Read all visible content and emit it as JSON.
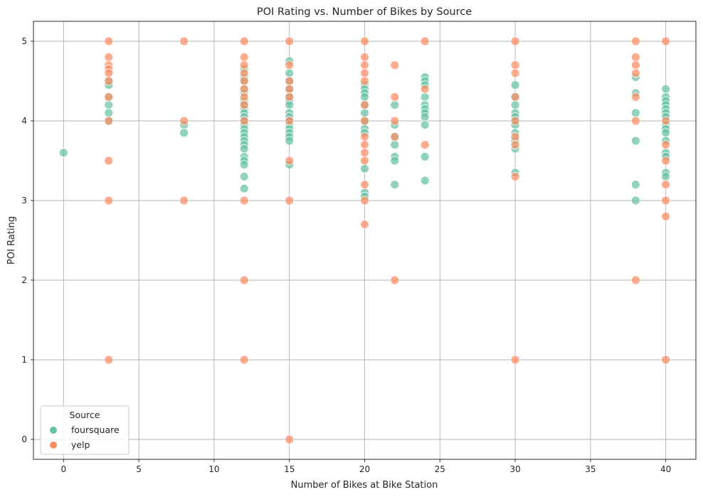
{
  "chart_data": {
    "type": "scatter",
    "title": "POI Rating vs. Number of Bikes by Source",
    "xlabel": "Number of Bikes at Bike Station",
    "ylabel": "POI Rating",
    "xlim": [
      -2,
      42
    ],
    "ylim": [
      -0.25,
      5.25
    ],
    "xticks": [
      0,
      5,
      10,
      15,
      20,
      25,
      30,
      35,
      40
    ],
    "yticks": [
      0,
      1,
      2,
      3,
      4,
      5
    ],
    "grid": true,
    "legend": {
      "title": "Source",
      "placement": "lower-left",
      "entries": [
        "foursquare",
        "yelp"
      ]
    },
    "colors": {
      "foursquare": "#66c2a5",
      "yelp": "#fc8d62"
    },
    "series": [
      {
        "name": "foursquare",
        "points": [
          [
            0,
            3.6
          ],
          [
            3,
            4.5
          ],
          [
            3,
            4.45
          ],
          [
            3,
            4.3
          ],
          [
            3,
            4.2
          ],
          [
            3,
            4.1
          ],
          [
            3,
            4.0
          ],
          [
            8,
            3.95
          ],
          [
            8,
            3.85
          ],
          [
            12,
            4.65
          ],
          [
            12,
            4.55
          ],
          [
            12,
            4.5
          ],
          [
            12,
            4.4
          ],
          [
            12,
            4.35
          ],
          [
            12,
            4.25
          ],
          [
            12,
            4.2
          ],
          [
            12,
            4.15
          ],
          [
            12,
            4.1
          ],
          [
            12,
            4.05
          ],
          [
            12,
            4.0
          ],
          [
            12,
            3.95
          ],
          [
            12,
            3.9
          ],
          [
            12,
            3.85
          ],
          [
            12,
            3.8
          ],
          [
            12,
            3.75
          ],
          [
            12,
            3.7
          ],
          [
            12,
            3.65
          ],
          [
            12,
            3.55
          ],
          [
            12,
            3.5
          ],
          [
            12,
            3.45
          ],
          [
            12,
            3.3
          ],
          [
            12,
            3.15
          ],
          [
            15,
            4.75
          ],
          [
            15,
            4.6
          ],
          [
            15,
            4.5
          ],
          [
            15,
            4.4
          ],
          [
            15,
            4.3
          ],
          [
            15,
            4.25
          ],
          [
            15,
            4.2
          ],
          [
            15,
            4.1
          ],
          [
            15,
            4.05
          ],
          [
            15,
            4.0
          ],
          [
            15,
            3.95
          ],
          [
            15,
            3.9
          ],
          [
            15,
            3.85
          ],
          [
            15,
            3.8
          ],
          [
            15,
            3.75
          ],
          [
            15,
            3.45
          ],
          [
            20,
            4.45
          ],
          [
            20,
            4.4
          ],
          [
            20,
            4.35
          ],
          [
            20,
            4.3
          ],
          [
            20,
            4.2
          ],
          [
            20,
            4.1
          ],
          [
            20,
            4.0
          ],
          [
            20,
            3.9
          ],
          [
            20,
            3.85
          ],
          [
            20,
            3.4
          ],
          [
            20,
            3.1
          ],
          [
            20,
            3.05
          ],
          [
            22,
            4.2
          ],
          [
            22,
            3.95
          ],
          [
            22,
            3.8
          ],
          [
            22,
            3.7
          ],
          [
            22,
            3.55
          ],
          [
            22,
            3.5
          ],
          [
            22,
            3.2
          ],
          [
            24,
            4.55
          ],
          [
            24,
            4.5
          ],
          [
            24,
            4.45
          ],
          [
            24,
            4.3
          ],
          [
            24,
            4.2
          ],
          [
            24,
            4.15
          ],
          [
            24,
            4.1
          ],
          [
            24,
            4.05
          ],
          [
            24,
            3.95
          ],
          [
            24,
            3.55
          ],
          [
            24,
            3.25
          ],
          [
            30,
            4.45
          ],
          [
            30,
            4.3
          ],
          [
            30,
            4.2
          ],
          [
            30,
            4.1
          ],
          [
            30,
            4.05
          ],
          [
            30,
            4.0
          ],
          [
            30,
            3.95
          ],
          [
            30,
            3.85
          ],
          [
            30,
            3.75
          ],
          [
            30,
            3.65
          ],
          [
            30,
            3.35
          ],
          [
            38,
            4.55
          ],
          [
            38,
            4.35
          ],
          [
            38,
            4.1
          ],
          [
            38,
            3.75
          ],
          [
            38,
            3.2
          ],
          [
            38,
            3.0
          ],
          [
            40,
            4.4
          ],
          [
            40,
            4.3
          ],
          [
            40,
            4.25
          ],
          [
            40,
            4.2
          ],
          [
            40,
            4.15
          ],
          [
            40,
            4.1
          ],
          [
            40,
            4.05
          ],
          [
            40,
            3.95
          ],
          [
            40,
            3.9
          ],
          [
            40,
            3.85
          ],
          [
            40,
            3.75
          ],
          [
            40,
            3.6
          ],
          [
            40,
            3.55
          ],
          [
            40,
            3.35
          ],
          [
            40,
            3.3
          ]
        ]
      },
      {
        "name": "yelp",
        "points": [
          [
            3,
            5.0
          ],
          [
            3,
            4.8
          ],
          [
            3,
            4.7
          ],
          [
            3,
            4.65
          ],
          [
            3,
            4.6
          ],
          [
            3,
            4.5
          ],
          [
            3,
            4.3
          ],
          [
            3,
            4.0
          ],
          [
            3,
            3.5
          ],
          [
            3,
            3.0
          ],
          [
            3,
            1.0
          ],
          [
            8,
            5.0
          ],
          [
            8,
            4.0
          ],
          [
            8,
            3.0
          ],
          [
            12,
            5.0
          ],
          [
            12,
            4.8
          ],
          [
            12,
            4.7
          ],
          [
            12,
            4.6
          ],
          [
            12,
            4.5
          ],
          [
            12,
            4.4
          ],
          [
            12,
            4.3
          ],
          [
            12,
            4.2
          ],
          [
            12,
            4.0
          ],
          [
            12,
            3.0
          ],
          [
            12,
            2.0
          ],
          [
            12,
            1.0
          ],
          [
            15,
            5.0
          ],
          [
            15,
            4.7
          ],
          [
            15,
            4.5
          ],
          [
            15,
            4.4
          ],
          [
            15,
            4.3
          ],
          [
            15,
            4.0
          ],
          [
            15,
            3.5
          ],
          [
            15,
            3.0
          ],
          [
            15,
            0.0
          ],
          [
            20,
            5.0
          ],
          [
            20,
            4.8
          ],
          [
            20,
            4.7
          ],
          [
            20,
            4.6
          ],
          [
            20,
            4.5
          ],
          [
            20,
            4.2
          ],
          [
            20,
            4.0
          ],
          [
            20,
            3.8
          ],
          [
            20,
            3.7
          ],
          [
            20,
            3.6
          ],
          [
            20,
            3.5
          ],
          [
            20,
            3.2
          ],
          [
            20,
            3.0
          ],
          [
            20,
            2.7
          ],
          [
            22,
            4.7
          ],
          [
            22,
            4.3
          ],
          [
            22,
            4.0
          ],
          [
            22,
            3.8
          ],
          [
            22,
            2.0
          ],
          [
            24,
            5.0
          ],
          [
            24,
            4.4
          ],
          [
            24,
            3.7
          ],
          [
            30,
            5.0
          ],
          [
            30,
            4.7
          ],
          [
            30,
            4.6
          ],
          [
            30,
            4.3
          ],
          [
            30,
            4.0
          ],
          [
            30,
            3.8
          ],
          [
            30,
            3.7
          ],
          [
            30,
            3.3
          ],
          [
            30,
            1.0
          ],
          [
            38,
            5.0
          ],
          [
            38,
            4.8
          ],
          [
            38,
            4.7
          ],
          [
            38,
            4.6
          ],
          [
            38,
            4.3
          ],
          [
            38,
            4.0
          ],
          [
            38,
            2.0
          ],
          [
            40,
            5.0
          ],
          [
            40,
            4.0
          ],
          [
            40,
            3.7
          ],
          [
            40,
            3.5
          ],
          [
            40,
            3.2
          ],
          [
            40,
            3.0
          ],
          [
            40,
            2.8
          ],
          [
            40,
            1.0
          ]
        ]
      }
    ]
  }
}
